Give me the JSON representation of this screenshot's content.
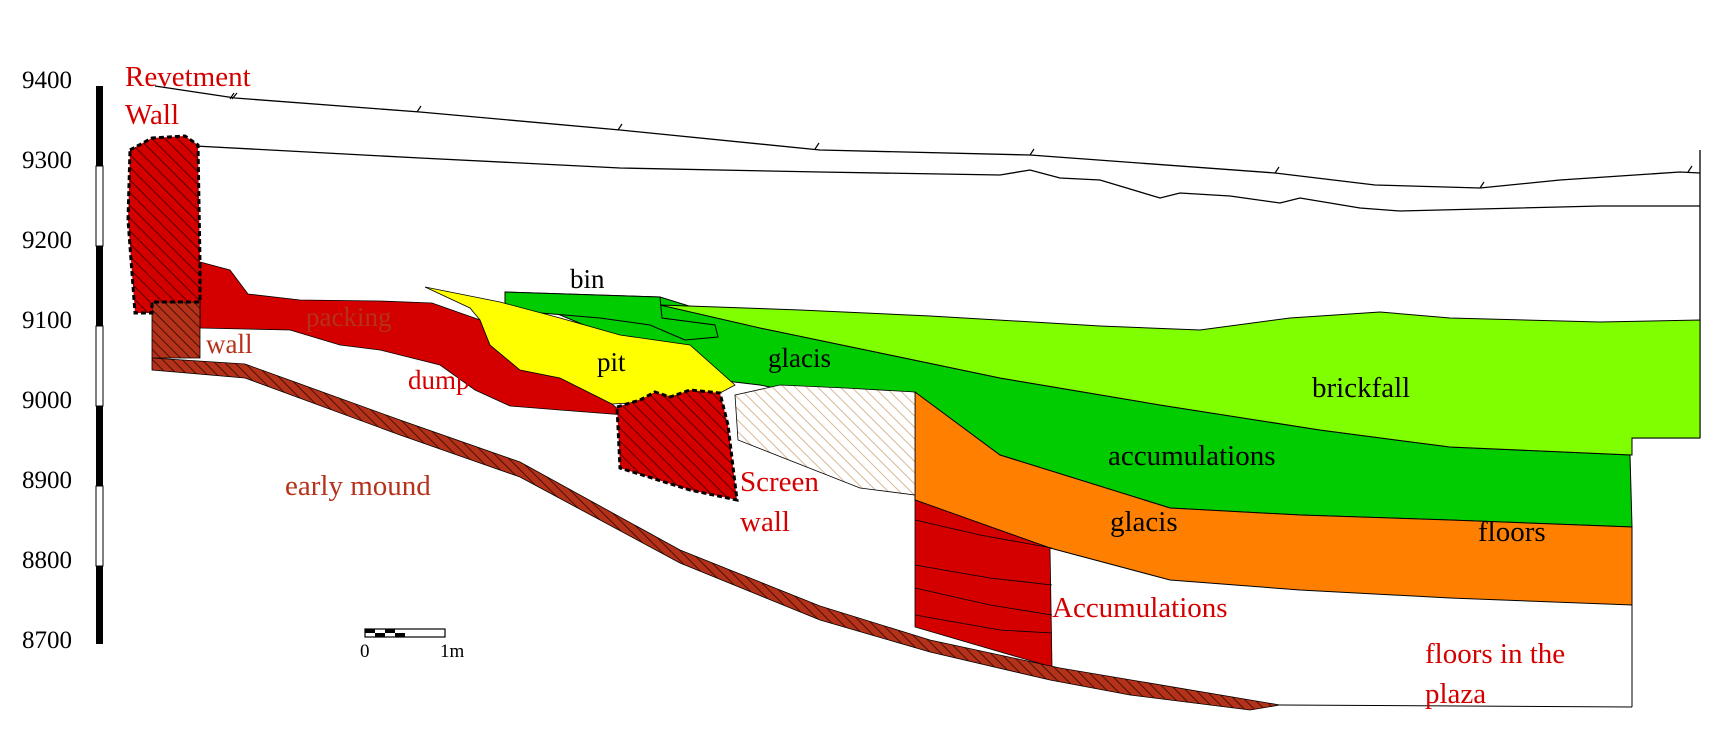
{
  "scale": {
    "ticks": [
      "9400",
      "9300",
      "9200",
      "9100",
      "9000",
      "8900",
      "8800",
      "8700"
    ],
    "bar_zero": "0",
    "bar_end": "1m"
  },
  "labels": {
    "revetment_line1": "Revetment",
    "revetment_line2": "Wall",
    "wall": "wall",
    "packing": "packing",
    "dump": "dump",
    "bin": "bin",
    "pit": "pit",
    "glacis_upper": "glacis",
    "brickfall": "brickfall",
    "accumulations_green": "accumulations",
    "glacis_lower": "glacis",
    "floors": "floors",
    "early_mound": "early mound",
    "screen_line1": "Screen",
    "screen_line2": "wall",
    "accumulations_red": "Accumulations",
    "plaza_line1": "floors in the",
    "plaza_line2": "plaza"
  },
  "colors": {
    "wall_red": "#d40000",
    "brick_brown": "#b5321a",
    "bright_green": "#00cc00",
    "light_green": "#80ff00",
    "pit_yellow": "#ffff00",
    "glacis_orange": "#ff8000",
    "fill_tan": "#e8d2b4"
  }
}
